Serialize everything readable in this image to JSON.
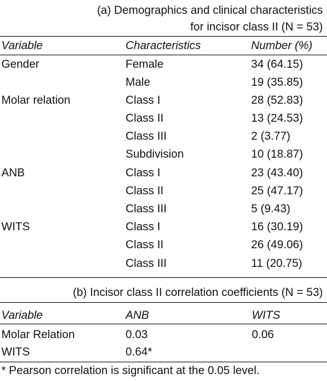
{
  "table_a": {
    "caption_line1": "(a) Demographics and clinical characteristics",
    "caption_line2": "for incisor class II (N = 53)",
    "headers": [
      "Variable",
      "Characteristics",
      "Number (%)"
    ],
    "rows": [
      [
        "Gender",
        "Female",
        "34 (64.15)"
      ],
      [
        "",
        "Male",
        "19 (35.85)"
      ],
      [
        "Molar relation",
        "Class I",
        "28 (52.83)"
      ],
      [
        "",
        "Class II",
        "13 (24.53)"
      ],
      [
        "",
        "Class III",
        "2 (3.77)"
      ],
      [
        "",
        "Subdivision",
        "10 (18.87)"
      ],
      [
        "ANB",
        "Class I",
        "23 (43.40)"
      ],
      [
        "",
        "Class II",
        "25 (47.17)"
      ],
      [
        "",
        "Class III",
        "5 (9.43)"
      ],
      [
        "WITS",
        "Class I",
        "16 (30.19)"
      ],
      [
        "",
        "Class II",
        "26 (49.06)"
      ],
      [
        "",
        "Class III",
        "11 (20.75)"
      ]
    ]
  },
  "table_b": {
    "caption": "(b) Incisor class II correlation coefficients (N = 53)",
    "headers": [
      "Variable",
      "ANB",
      "WITS"
    ],
    "rows": [
      [
        "Molar Relation",
        "0.03",
        "0.06"
      ],
      [
        "WITS",
        "0.64*",
        ""
      ]
    ]
  },
  "footnote": "* Pearson correlation is significant at the 0.05 level."
}
